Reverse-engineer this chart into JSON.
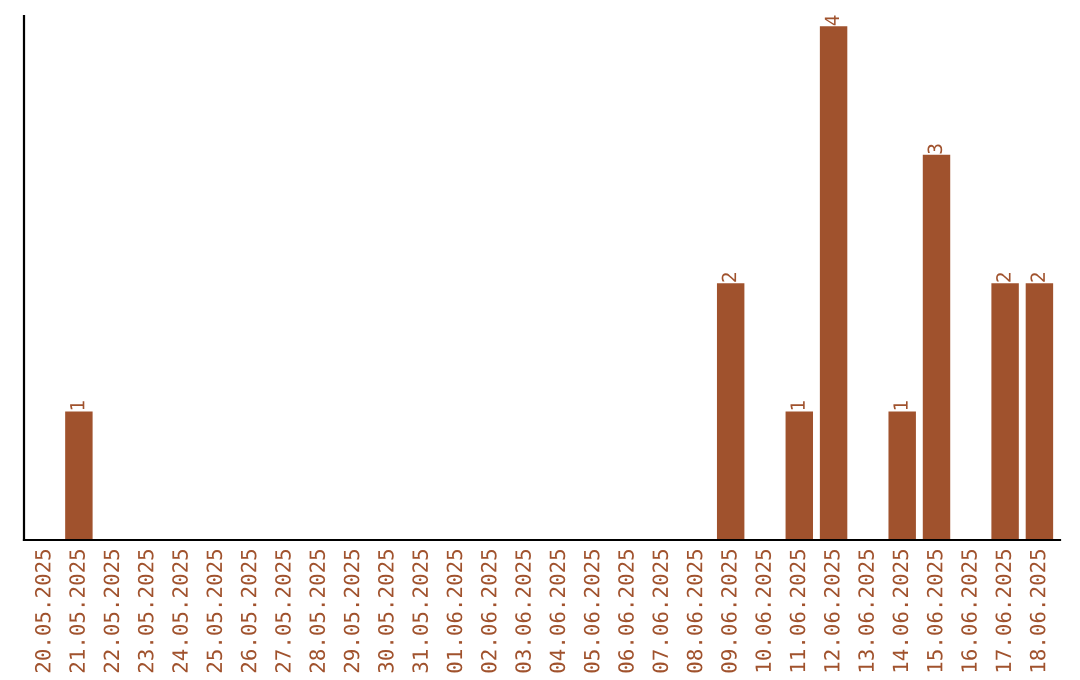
{
  "chart_data": {
    "type": "bar",
    "categories": [
      "20.05.2025",
      "21.05.2025",
      "22.05.2025",
      "23.05.2025",
      "24.05.2025",
      "25.05.2025",
      "26.05.2025",
      "27.05.2025",
      "28.05.2025",
      "29.05.2025",
      "30.05.2025",
      "31.05.2025",
      "01.06.2025",
      "02.06.2025",
      "03.06.2025",
      "04.06.2025",
      "05.06.2025",
      "06.06.2025",
      "07.06.2025",
      "08.06.2025",
      "09.06.2025",
      "10.06.2025",
      "11.06.2025",
      "12.06.2025",
      "13.06.2025",
      "14.06.2025",
      "15.06.2025",
      "16.06.2025",
      "17.06.2025",
      "18.06.2025"
    ],
    "values": [
      0,
      1,
      0,
      0,
      0,
      0,
      0,
      0,
      0,
      0,
      0,
      0,
      0,
      0,
      0,
      0,
      0,
      0,
      0,
      0,
      2,
      0,
      1,
      4,
      0,
      1,
      3,
      0,
      2,
      2
    ],
    "value_labels": [
      null,
      "1",
      null,
      null,
      null,
      null,
      null,
      null,
      null,
      null,
      null,
      null,
      null,
      null,
      null,
      null,
      null,
      null,
      null,
      null,
      "2",
      null,
      "1",
      "4",
      null,
      "1",
      "3",
      null,
      "2",
      "2"
    ],
    "color": "#a0522d",
    "grid": false,
    "legend": false
  }
}
